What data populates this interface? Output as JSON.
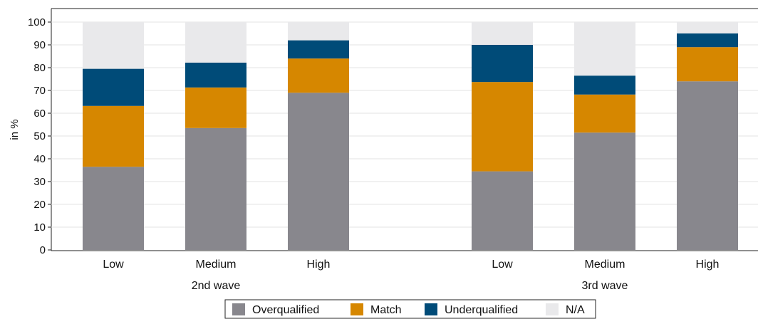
{
  "chart_data": {
    "type": "bar",
    "stacked": true,
    "ylabel": "in %",
    "ylim": [
      0,
      100
    ],
    "yticks": [
      0,
      10,
      20,
      30,
      40,
      50,
      60,
      70,
      80,
      90,
      100
    ],
    "grid": true,
    "legend_position": "bottom",
    "groups": [
      {
        "label": "2nd wave",
        "categories": [
          "Low",
          "Medium",
          "High"
        ],
        "series": [
          {
            "name": "Overqualified",
            "values": [
              36.5,
              53.5,
              69
            ]
          },
          {
            "name": "Match",
            "values": [
              26.7,
              17.8,
              15
            ]
          },
          {
            "name": "Underqualified",
            "values": [
              16.3,
              10.9,
              8
            ]
          },
          {
            "name": "N/A",
            "values": [
              20.5,
              17.8,
              8
            ]
          }
        ]
      },
      {
        "label": "3rd wave",
        "categories": [
          "Low",
          "Medium",
          "High"
        ],
        "series": [
          {
            "name": "Overqualified",
            "values": [
              34.5,
              51.5,
              74
            ]
          },
          {
            "name": "Match",
            "values": [
              39.2,
              16.7,
              15
            ]
          },
          {
            "name": "Underqualified",
            "values": [
              16.3,
              8.3,
              6
            ]
          },
          {
            "name": "N/A",
            "values": [
              10,
              23.5,
              5
            ]
          }
        ]
      }
    ],
    "colors": {
      "Overqualified": "#88878d",
      "Match": "#d68700",
      "Underqualified": "#004b78",
      "N/A": "#e9e9eb"
    }
  }
}
